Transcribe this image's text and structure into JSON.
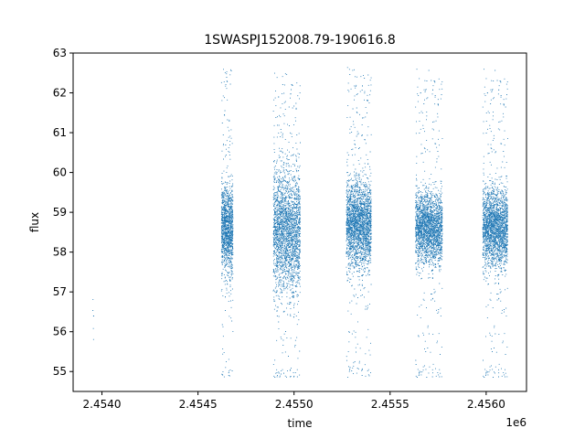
{
  "chart_data": {
    "type": "scatter",
    "title": "1SWASPJ152008.79-190616.8",
    "xlabel": "time",
    "ylabel": "flux",
    "x_offset_label": "1e6",
    "xlim": [
      2453850,
      2456210
    ],
    "ylim": [
      54.5,
      63.0
    ],
    "xticks": [
      2454000,
      2454500,
      2455000,
      2455500,
      2456000
    ],
    "xtick_labels": [
      "2.4540",
      "2.4545",
      "2.4550",
      "2.4555",
      "2.4560"
    ],
    "yticks": [
      55,
      56,
      57,
      58,
      59,
      60,
      61,
      62,
      63
    ],
    "ytick_labels": [
      "55",
      "56",
      "57",
      "58",
      "59",
      "60",
      "61",
      "62",
      "63"
    ],
    "grid": false,
    "marker_color": "#1f77b4",
    "seasons": [
      {
        "x_start": 2453950,
        "x_end": 2453955,
        "median_flux": 56.6,
        "spread": 0.5,
        "n_points": 6
      },
      {
        "x_start": 2454620,
        "x_end": 2454680,
        "median_flux": 58.6,
        "spread": 0.55,
        "n_points": 1400
      },
      {
        "x_start": 2454890,
        "x_end": 2455030,
        "median_flux": 58.5,
        "spread": 0.75,
        "n_points": 2600
      },
      {
        "x_start": 2455270,
        "x_end": 2455400,
        "median_flux": 58.7,
        "spread": 0.55,
        "n_points": 2600
      },
      {
        "x_start": 2455630,
        "x_end": 2455770,
        "median_flux": 58.6,
        "spread": 0.45,
        "n_points": 2400
      },
      {
        "x_start": 2455980,
        "x_end": 2456110,
        "median_flux": 58.6,
        "spread": 0.5,
        "n_points": 2400
      }
    ]
  }
}
